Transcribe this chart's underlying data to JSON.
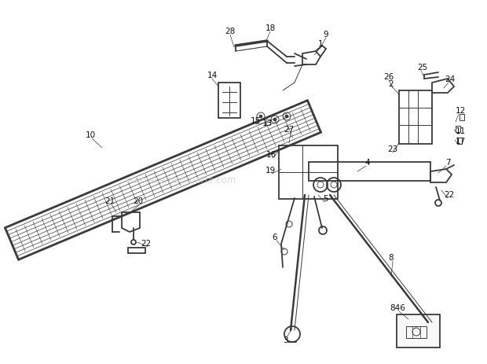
{
  "bg_color": "#ffffff",
  "line_color": "#3a3a3a",
  "label_color": "#111111",
  "watermark": "ereplacementparts.com",
  "watermark_color": "#c8c8c8",
  "fig_width": 6.2,
  "fig_height": 4.63,
  "dpi": 100
}
